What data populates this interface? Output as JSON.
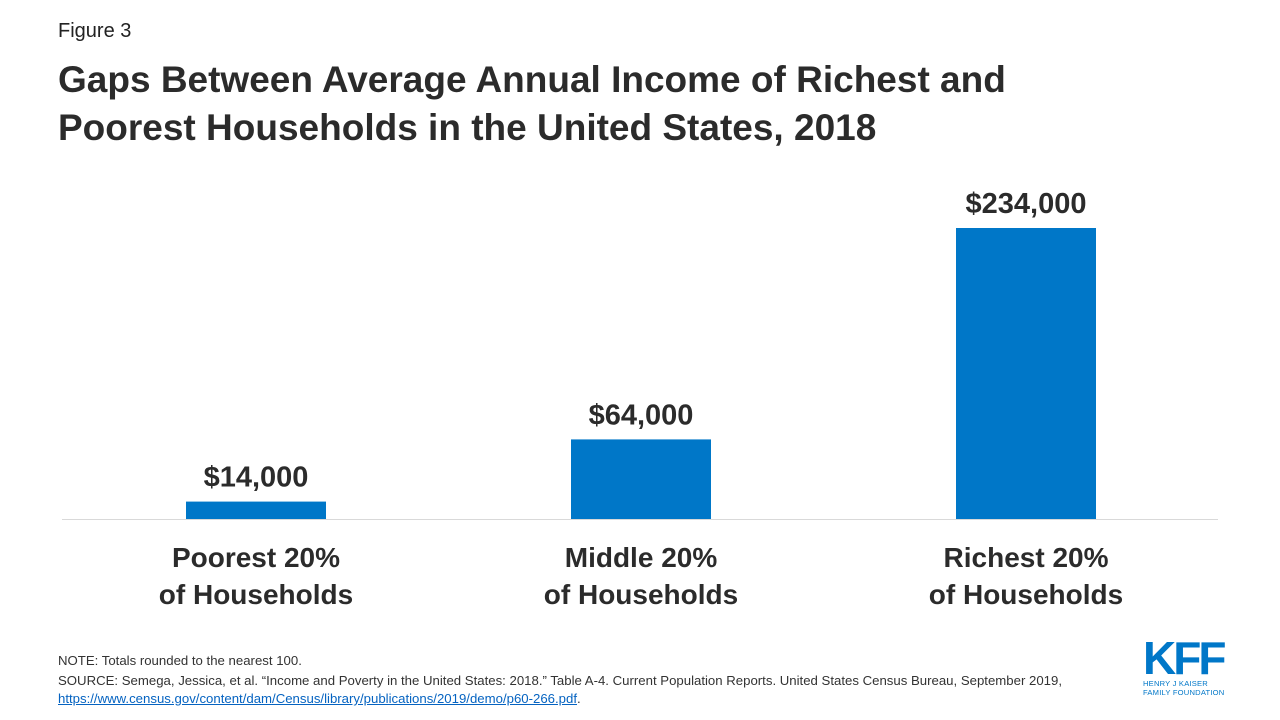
{
  "figure_label": "Figure 3",
  "title_lines": [
    "Gaps Between Average Annual Income of Richest and",
    "Poorest Households in the United States, 2018"
  ],
  "chart_data": {
    "type": "bar",
    "title": "Gaps Between Average Annual Income of Richest and Poorest Households in the United States, 2018",
    "categories": [
      {
        "line1": "Poorest 20%",
        "line2": "of Households"
      },
      {
        "line1": "Middle 20%",
        "line2": "of Households"
      },
      {
        "line1": "Richest 20%",
        "line2": "of Households"
      }
    ],
    "values": [
      14000,
      64000,
      234000
    ],
    "value_labels": [
      "$14,000",
      "$64,000",
      "$234,000"
    ],
    "ylim": [
      0,
      234000
    ],
    "grid": false,
    "legend": "none",
    "bar_color": "#0077c8"
  },
  "note": "NOTE: Totals rounded to the nearest 100.",
  "source": {
    "text": "SOURCE:  Semega, Jessica, et al. “Income and Poverty in the United States: 2018.” Table A-4. Current Population Reports. United States Census Bureau, September 2019, ",
    "link": "https://www.census.gov/content/dam/Census/library/publications/2019/demo/p60-266.pdf",
    "suffix": "."
  },
  "logo": {
    "mark": "KFF",
    "line1": "HENRY J KAISER",
    "line2": "FAMILY FOUNDATION",
    "color": "#0077c8"
  }
}
